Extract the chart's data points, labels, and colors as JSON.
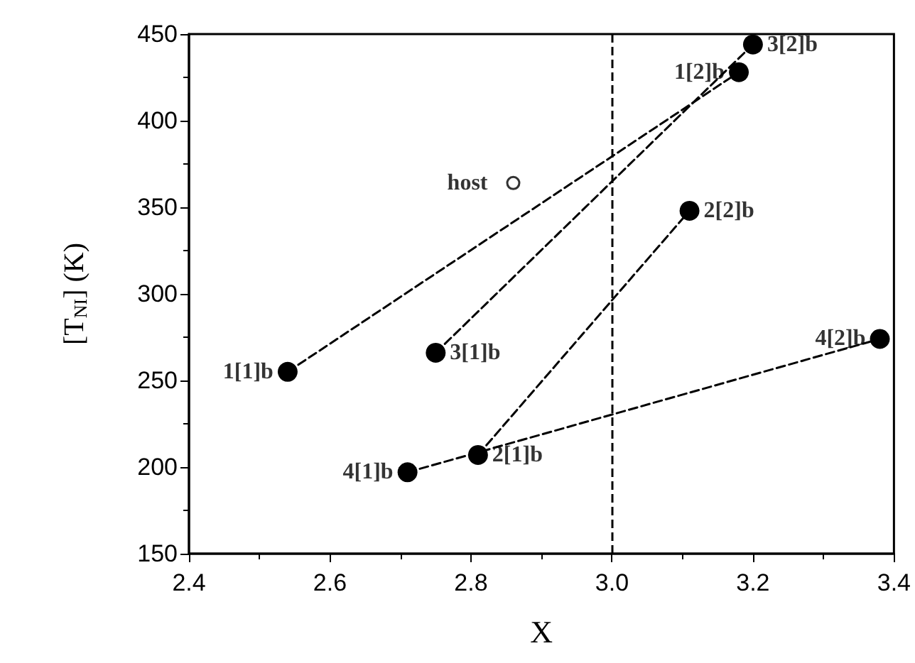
{
  "chart_data": {
    "type": "line",
    "xlabel": "X",
    "ylabel": "[T$_{NI}$] (K)",
    "xlim": [
      2.4,
      3.4
    ],
    "xticks": [
      {
        "value": 2.4,
        "label": "2.4"
      },
      {
        "value": 2.6,
        "label": "2.6"
      },
      {
        "value": 2.8,
        "label": "2.8"
      },
      {
        "value": 3.0,
        "label": "3.0"
      },
      {
        "value": 3.2,
        "label": "3.2"
      },
      {
        "value": 3.4,
        "label": "3.4"
      }
    ],
    "ylim": [
      150,
      450
    ],
    "yticks": [
      150,
      200,
      250,
      300,
      350,
      400,
      450
    ],
    "grid": false,
    "marker": "circle",
    "line_style": "dashed",
    "series": [
      {
        "color": "#000000",
        "x": [
          2.54,
          3.18
        ],
        "values": [
          255,
          428
        ]
      },
      {
        "color": "#000000",
        "x": [
          2.81,
          3.11
        ],
        "values": [
          207,
          348
        ]
      },
      {
        "color": "#000000",
        "x": [
          2.75,
          3.2
        ],
        "values": [
          266,
          444
        ]
      },
      {
        "color": "#000000",
        "x": [
          2.71,
          3.38
        ],
        "values": [
          197,
          274
        ]
      },
      {
        "type": "scatter",
        "color": "#000000",
        "x": [
          2.86
        ],
        "values": [
          364
        ]
      }
    ],
    "ref_lines": [
      {
        "axis": "x",
        "value": 3.0,
        "color": "#000000",
        "line_style": "dashed"
      }
    ],
    "annotations": [
      {
        "text": "1[1]b",
        "x": 2.54,
        "y": 255
      },
      {
        "text": "1[2]b",
        "x": 3.18,
        "y": 428
      },
      {
        "text": "2[1]b",
        "x": 2.81,
        "y": 207
      },
      {
        "text": "2[2]b",
        "x": 3.11,
        "y": 348
      },
      {
        "text": "3[1]b",
        "x": 2.75,
        "y": 266
      },
      {
        "text": "3[2]b",
        "x": 3.2,
        "y": 444
      },
      {
        "text": "4[1]b",
        "x": 2.71,
        "y": 197
      },
      {
        "text": "4[2]b",
        "x": 3.38,
        "y": 274
      },
      {
        "text": "host",
        "x": 2.86,
        "y": 364
      }
    ]
  }
}
